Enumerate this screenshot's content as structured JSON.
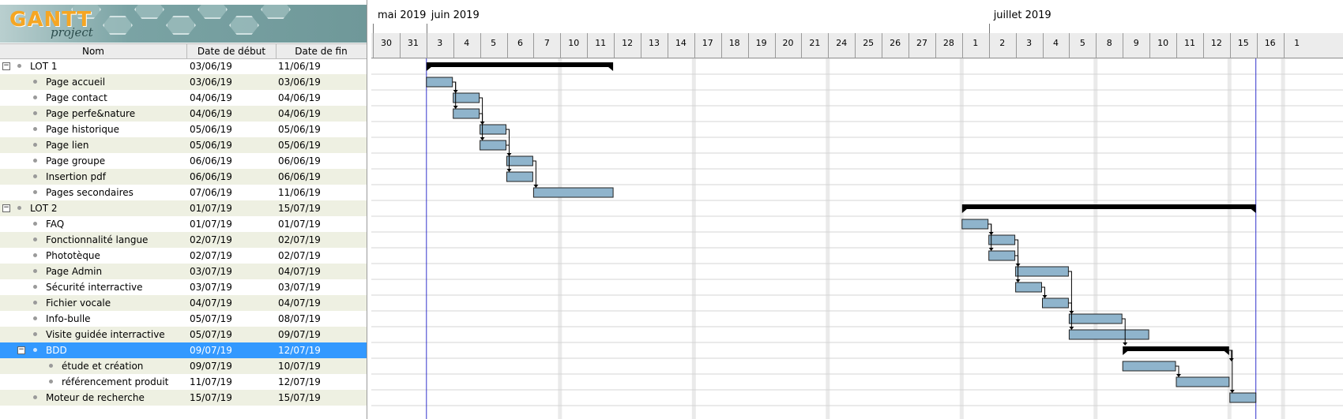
{
  "logo": {
    "gantt": "GANTT",
    "project": "project"
  },
  "columns": {
    "name": "Nom",
    "start": "Date de début",
    "end": "Date de fin"
  },
  "months": [
    {
      "label": "mai 2019",
      "day_index": 0
    },
    {
      "label": "juin 2019",
      "day_index": 2
    },
    {
      "label": "juillet 2019",
      "day_index": 23
    }
  ],
  "days": [
    "30",
    "31",
    "3",
    "4",
    "5",
    "6",
    "7",
    "10",
    "11",
    "12",
    "13",
    "14",
    "17",
    "18",
    "19",
    "20",
    "21",
    "24",
    "25",
    "26",
    "27",
    "28",
    "1",
    "2",
    "3",
    "4",
    "5",
    "8",
    "9",
    "10",
    "11",
    "12",
    "15",
    "16",
    "1"
  ],
  "today_marker": "15/07/19",
  "tasks": [
    {
      "name": "LOT 1",
      "start": "03/06/19",
      "end": "11/06/19",
      "level": 0,
      "group": true,
      "expanded": true
    },
    {
      "name": "Page accueil",
      "start": "03/06/19",
      "end": "03/06/19",
      "level": 1
    },
    {
      "name": "Page contact",
      "start": "04/06/19",
      "end": "04/06/19",
      "level": 1
    },
    {
      "name": "Page perfe&nature",
      "start": "04/06/19",
      "end": "04/06/19",
      "level": 1
    },
    {
      "name": "Page historique",
      "start": "05/06/19",
      "end": "05/06/19",
      "level": 1
    },
    {
      "name": "Page lien",
      "start": "05/06/19",
      "end": "05/06/19",
      "level": 1
    },
    {
      "name": "Page groupe",
      "start": "06/06/19",
      "end": "06/06/19",
      "level": 1
    },
    {
      "name": "Insertion pdf",
      "start": "06/06/19",
      "end": "06/06/19",
      "level": 1
    },
    {
      "name": "Pages secondaires",
      "start": "07/06/19",
      "end": "11/06/19",
      "level": 1
    },
    {
      "name": "LOT 2",
      "start": "01/07/19",
      "end": "15/07/19",
      "level": 0,
      "group": true,
      "expanded": true
    },
    {
      "name": "FAQ",
      "start": "01/07/19",
      "end": "01/07/19",
      "level": 1
    },
    {
      "name": "Fonctionnalité langue",
      "start": "02/07/19",
      "end": "02/07/19",
      "level": 1
    },
    {
      "name": "Phototèque",
      "start": "02/07/19",
      "end": "02/07/19",
      "level": 1
    },
    {
      "name": "Page Admin",
      "start": "03/07/19",
      "end": "04/07/19",
      "level": 1
    },
    {
      "name": "Sécurité interractive",
      "start": "03/07/19",
      "end": "03/07/19",
      "level": 1
    },
    {
      "name": "Fichier vocale",
      "start": "04/07/19",
      "end": "04/07/19",
      "level": 1
    },
    {
      "name": "Info-bulle",
      "start": "05/07/19",
      "end": "08/07/19",
      "level": 1
    },
    {
      "name": "Visite guidée interractive",
      "start": "05/07/19",
      "end": "09/07/19",
      "level": 1
    },
    {
      "name": "BDD",
      "start": "09/07/19",
      "end": "12/07/19",
      "level": 1,
      "group": true,
      "expanded": true,
      "selected": true
    },
    {
      "name": "étude et création",
      "start": "09/07/19",
      "end": "10/07/19",
      "level": 2
    },
    {
      "name": "référencement produit",
      "start": "11/07/19",
      "end": "12/07/19",
      "level": 2
    },
    {
      "name": "Moteur de recherche",
      "start": "15/07/19",
      "end": "15/07/19",
      "level": 1
    }
  ],
  "colors": {
    "bar": "#8fb4cc",
    "summary": "#000000",
    "selected": "#3399ff",
    "alt_row": "#eef0e2",
    "today": "#3333cc"
  }
}
